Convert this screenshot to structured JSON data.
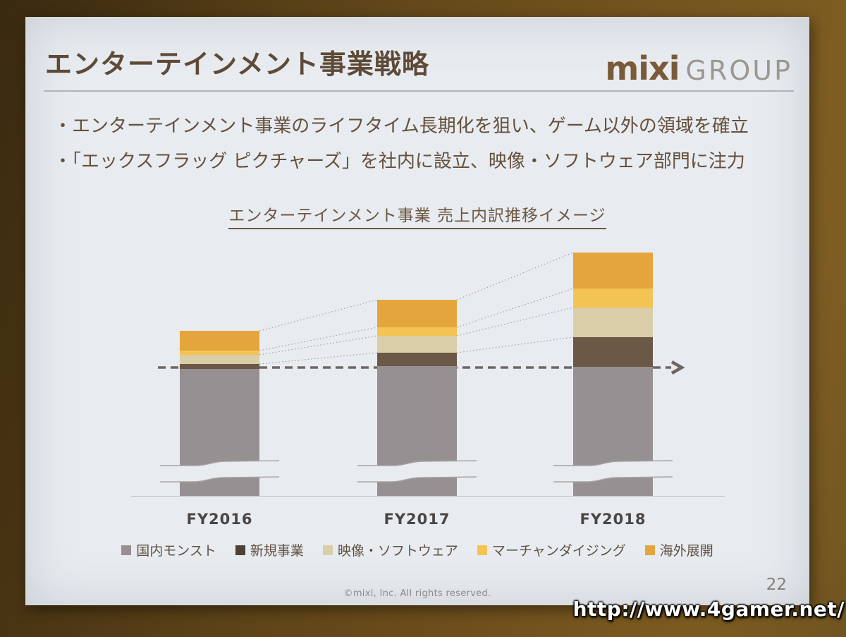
{
  "photo": {
    "watermark_url": "http://www.4gamer.net/"
  },
  "slide": {
    "title": "エンターテインメント事業戦略",
    "logo": {
      "brand": "mixi",
      "suffix": "GROUP"
    },
    "bullets": [
      "・エンターテインメント事業のライフタイム長期化を狙い、ゲーム以外の領域を確立",
      "・「エックスフラッグ ピクチャーズ」を社内に設立、映像・ソフトウェア部門に注力"
    ],
    "chart_title": "エンターテインメント事業 売上内訳推移イメージ",
    "footer_copyright": "©mixi, Inc. All rights reserved.",
    "page_number": "22"
  },
  "chart_data": {
    "type": "bar",
    "stacked": true,
    "title": "エンターテインメント事業 売上内訳推移イメージ",
    "categories": [
      "FY2016",
      "FY2017",
      "FY2018"
    ],
    "unit": "relative height (illustrative chart, no numeric axis shown)",
    "series": [
      {
        "name": "国内モンスト",
        "color": "#969093",
        "values": [
          180,
          184,
          183
        ],
        "axis_break": true
      },
      {
        "name": "新規事業",
        "color": "#6b5846",
        "values": [
          7,
          19,
          42
        ]
      },
      {
        "name": "映像・ソフトウェア",
        "color": "#d9cea7",
        "values": [
          13,
          24,
          42
        ]
      },
      {
        "name": "マーチャンダイジング",
        "color": "#f3c454",
        "values": [
          6,
          12,
          27
        ]
      },
      {
        "name": "海外展開",
        "color": "#e4a53c",
        "values": [
          28,
          39,
          51
        ]
      }
    ],
    "legend_position": "bottom",
    "grid": false,
    "annotations": {
      "dashed_arrow": "horizontal dashed arrow at the top level of 国内モンスト, pointing right",
      "connectors": "dotted lines linking segment boundaries between adjacent bars",
      "axis_break": "wavy break marks near the bottom of each bar"
    }
  }
}
